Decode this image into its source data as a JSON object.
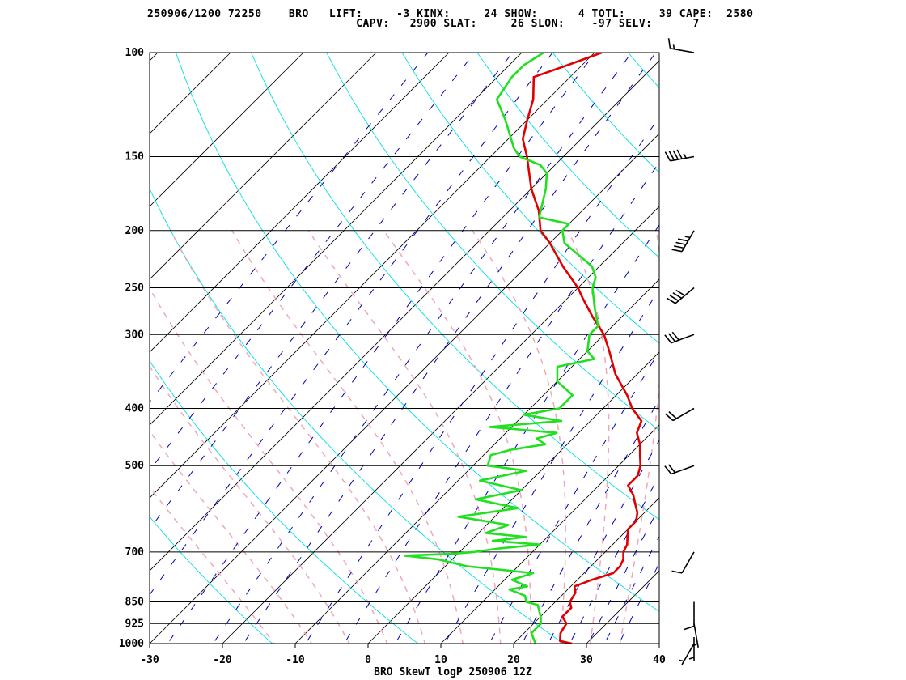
{
  "header": {
    "line1": "250906/1200 72250    BRO   LIFT:     -3 KINX:     24 SHOW:      4 TOTL:     39 CAPE:  2580",
    "line2": "                               CAPV:   2900 SLAT:     26 SLON:    -97 SELV:      7"
  },
  "colors": {
    "isotherm": "#000000",
    "dry_adiabat": "#00e0e0",
    "moist_adiabat": "#f0a8b8",
    "mixing_ratio": "#0000c0",
    "temperature": "#e00000",
    "dewpoint": "#20e020",
    "frame": "#000000"
  },
  "chart_data": {
    "type": "line",
    "title": "BRO SkewT logP 250906 12Z",
    "x_axis": {
      "label": "",
      "range": [
        -30,
        40
      ],
      "ticks": [
        "-30",
        "-20",
        "-10",
        "0",
        "10",
        "20",
        "30",
        "40"
      ]
    },
    "y_axis": {
      "label": "",
      "scale": "log",
      "range": [
        1000,
        100
      ],
      "ticks": [
        "100",
        "150",
        "200",
        "250",
        "300",
        "400",
        "500",
        "700",
        "850",
        "925",
        "1000"
      ]
    },
    "grid": true,
    "series": [
      {
        "role": "temperature",
        "points": [
          [
            1000,
            28
          ],
          [
            990,
            26
          ],
          [
            960,
            25
          ],
          [
            925,
            24.5
          ],
          [
            900,
            23
          ],
          [
            870,
            23
          ],
          [
            850,
            22
          ],
          [
            820,
            21.5
          ],
          [
            800,
            20.5
          ],
          [
            780,
            22
          ],
          [
            760,
            24
          ],
          [
            740,
            24
          ],
          [
            720,
            23.5
          ],
          [
            700,
            22.5
          ],
          [
            680,
            22
          ],
          [
            660,
            21
          ],
          [
            640,
            20
          ],
          [
            620,
            20
          ],
          [
            600,
            19
          ],
          [
            580,
            17.5
          ],
          [
            560,
            16
          ],
          [
            540,
            14
          ],
          [
            520,
            14
          ],
          [
            500,
            13
          ],
          [
            480,
            11.5
          ],
          [
            460,
            10
          ],
          [
            440,
            8
          ],
          [
            420,
            7
          ],
          [
            400,
            4
          ],
          [
            380,
            1.5
          ],
          [
            350,
            -3
          ],
          [
            320,
            -7
          ],
          [
            300,
            -10
          ],
          [
            280,
            -14
          ],
          [
            260,
            -18
          ],
          [
            250,
            -20
          ],
          [
            230,
            -25
          ],
          [
            210,
            -30
          ],
          [
            200,
            -33
          ],
          [
            185,
            -36
          ],
          [
            170,
            -40
          ],
          [
            150,
            -45
          ],
          [
            140,
            -48
          ],
          [
            130,
            -50
          ],
          [
            120,
            -52
          ],
          [
            110,
            -55
          ],
          [
            105,
            -52
          ],
          [
            100,
            -49
          ]
        ]
      },
      {
        "role": "dewpoint",
        "points": [
          [
            1000,
            23
          ],
          [
            960,
            21
          ],
          [
            925,
            21
          ],
          [
            900,
            20
          ],
          [
            880,
            19
          ],
          [
            860,
            18
          ],
          [
            850,
            16
          ],
          [
            830,
            15
          ],
          [
            810,
            12
          ],
          [
            800,
            14
          ],
          [
            780,
            11
          ],
          [
            760,
            13
          ],
          [
            740,
            3
          ],
          [
            720,
            -2
          ],
          [
            710,
            -7
          ],
          [
            705,
            -1
          ],
          [
            700,
            2
          ],
          [
            690,
            5
          ],
          [
            680,
            10
          ],
          [
            670,
            3
          ],
          [
            660,
            7
          ],
          [
            650,
            1
          ],
          [
            630,
            3
          ],
          [
            610,
            -5
          ],
          [
            590,
            2
          ],
          [
            570,
            -5
          ],
          [
            550,
            0
          ],
          [
            530,
            -7
          ],
          [
            510,
            -2
          ],
          [
            500,
            -8
          ],
          [
            480,
            -9
          ],
          [
            470,
            -7
          ],
          [
            460,
            -3
          ],
          [
            450,
            -5
          ],
          [
            440,
            -3
          ],
          [
            430,
            -13
          ],
          [
            420,
            -4
          ],
          [
            410,
            -10
          ],
          [
            400,
            -6
          ],
          [
            380,
            -6
          ],
          [
            360,
            -10
          ],
          [
            340,
            -12
          ],
          [
            330,
            -8
          ],
          [
            320,
            -10
          ],
          [
            300,
            -12
          ],
          [
            290,
            -12
          ],
          [
            270,
            -15
          ],
          [
            250,
            -18
          ],
          [
            240,
            -19
          ],
          [
            230,
            -21
          ],
          [
            210,
            -28
          ],
          [
            200,
            -30
          ],
          [
            195,
            -30
          ],
          [
            190,
            -35
          ],
          [
            170,
            -38
          ],
          [
            160,
            -40
          ],
          [
            155,
            -42
          ],
          [
            150,
            -46
          ],
          [
            145,
            -48
          ],
          [
            130,
            -53
          ],
          [
            120,
            -57
          ],
          [
            110,
            -58
          ],
          [
            105,
            -58
          ],
          [
            100,
            -57
          ]
        ]
      }
    ],
    "wind_barbs": [
      {
        "p": 1000,
        "dir": 210,
        "spd": 5
      },
      {
        "p": 975,
        "dir": 180,
        "spd": 5
      },
      {
        "p": 925,
        "dir": 170,
        "spd": 5
      },
      {
        "p": 850,
        "dir": 180,
        "spd": 10
      },
      {
        "p": 700,
        "dir": 210,
        "spd": 10
      },
      {
        "p": 500,
        "dir": 250,
        "spd": 20
      },
      {
        "p": 400,
        "dir": 240,
        "spd": 20
      },
      {
        "p": 300,
        "dir": 250,
        "spd": 30
      },
      {
        "p": 250,
        "dir": 230,
        "spd": 40
      },
      {
        "p": 200,
        "dir": 210,
        "spd": 45
      },
      {
        "p": 150,
        "dir": 260,
        "spd": 45
      },
      {
        "p": 100,
        "dir": 280,
        "spd": 15
      }
    ]
  }
}
